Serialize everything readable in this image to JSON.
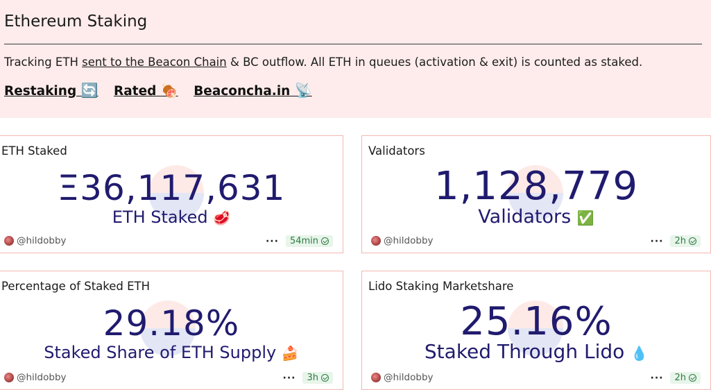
{
  "header": {
    "title": "Ethereum Staking",
    "description_prefix": "Tracking ETH ",
    "description_link": "sent to the Beacon Chain",
    "description_suffix": " & BC outflow. All ETH in queues (activation & exit) is counted as staked.",
    "links": [
      {
        "label": "Restaking",
        "emoji": "🔄"
      },
      {
        "label": "Rated",
        "emoji": "🍖"
      },
      {
        "label": "Beaconcha.in",
        "emoji": "📡"
      }
    ]
  },
  "cards": [
    {
      "title": "ETH Staked",
      "value": "Ξ36,117,631",
      "subtitle": "ETH Staked",
      "emoji": "🥩",
      "author": "@hildobby",
      "age": "54min"
    },
    {
      "title": "Validators",
      "value": "1,128,779",
      "subtitle": "Validators",
      "emoji": "✅",
      "author": "@hildobby",
      "age": "2h"
    },
    {
      "title": "Percentage of Staked ETH",
      "value": "29.18%",
      "subtitle": "Staked Share of ETH Supply",
      "emoji": "🍰",
      "author": "@hildobby",
      "age": "3h"
    },
    {
      "title": "Lido Staking Marketshare",
      "value": "25.16%",
      "subtitle": "Staked Through Lido",
      "emoji": "💧",
      "author": "@hildobby",
      "age": "2h"
    }
  ],
  "ui": {
    "more_icon": "ellipsis-icon",
    "fresh_icon": "check-circle-icon"
  }
}
